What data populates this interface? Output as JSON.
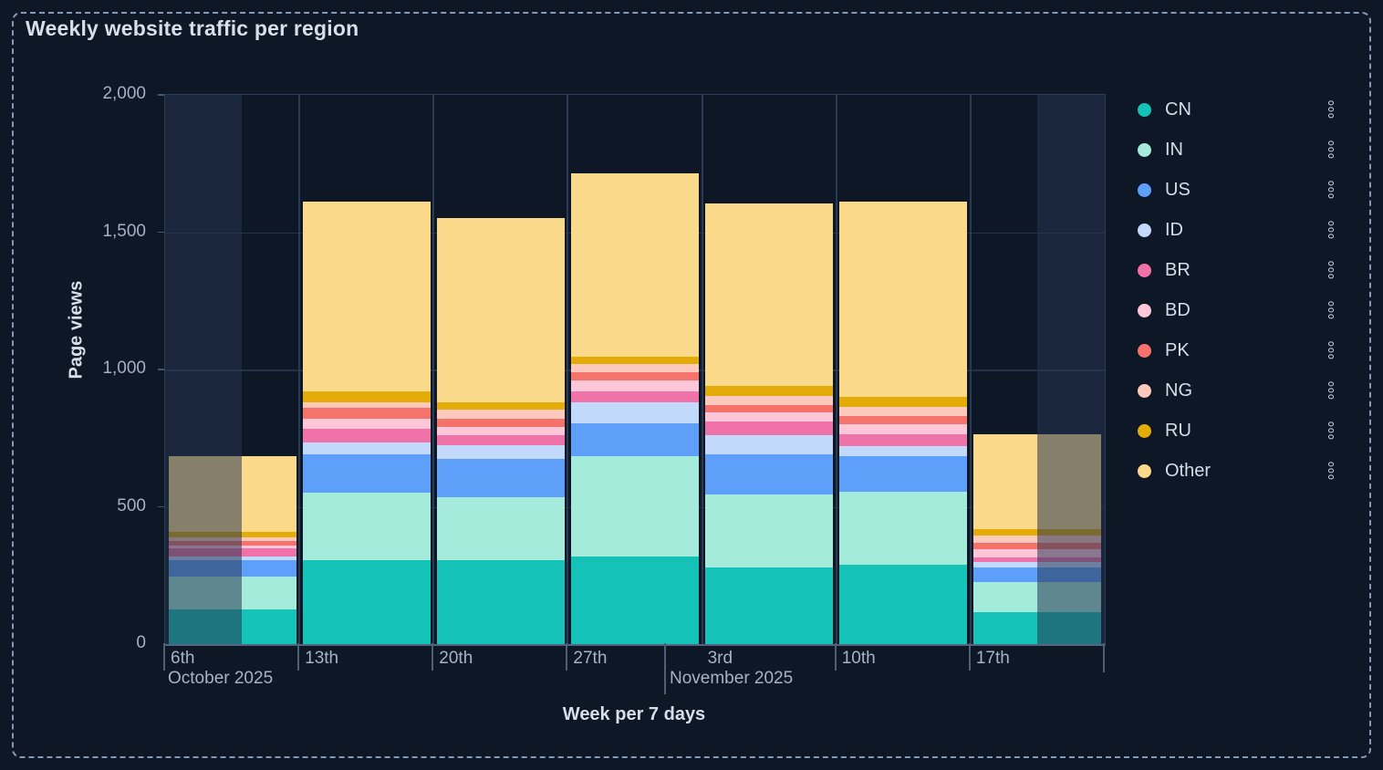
{
  "title": "Weekly website traffic per region",
  "y_axis": {
    "title": "Page views",
    "tick_labels": [
      "0",
      "500",
      "1,000",
      "1,500",
      "2,000"
    ],
    "tick_values": [
      0,
      500,
      1000,
      1500,
      2000
    ]
  },
  "x_axis": {
    "title": "Week per 7 days",
    "day_labels": [
      "6th",
      "13th",
      "20th",
      "27th",
      "3rd",
      "10th",
      "17th"
    ],
    "month_labels": [
      "October 2025",
      "November 2025"
    ]
  },
  "legend": {
    "menu_icon": "kebab-vertical-dots-icon",
    "items": [
      {
        "label": "CN",
        "color": "#15c2b8"
      },
      {
        "label": "IN",
        "color": "#a5ebdc"
      },
      {
        "label": "US",
        "color": "#5e9ffa"
      },
      {
        "label": "ID",
        "color": "#c2d9fc"
      },
      {
        "label": "BR",
        "color": "#ef72a8"
      },
      {
        "label": "BD",
        "color": "#fec7d9"
      },
      {
        "label": "PK",
        "color": "#f6736c"
      },
      {
        "label": "NG",
        "color": "#fdc9bd"
      },
      {
        "label": "RU",
        "color": "#e3ac08"
      },
      {
        "label": "Other",
        "color": "#fbd98b"
      }
    ]
  },
  "chart_data": {
    "type": "bar",
    "stacked": true,
    "title": "Weekly website traffic per region",
    "xlabel": "Week per 7 days",
    "ylabel": "Page views",
    "ylim": [
      0,
      2000
    ],
    "grid": true,
    "legend_position": "right",
    "categories": [
      "Oct 6 2025",
      "Oct 13 2025",
      "Oct 20 2025",
      "Oct 27 2025",
      "Nov 3 2025",
      "Nov 10 2025",
      "Nov 17 2025"
    ],
    "series": [
      {
        "name": "CN",
        "color": "#15c2b8",
        "values": [
          125,
          305,
          305,
          320,
          280,
          290,
          115
        ]
      },
      {
        "name": "IN",
        "color": "#a5ebdc",
        "values": [
          120,
          245,
          230,
          365,
          265,
          265,
          110
        ]
      },
      {
        "name": "US",
        "color": "#5e9ffa",
        "values": [
          60,
          140,
          140,
          120,
          145,
          130,
          55
        ]
      },
      {
        "name": "ID",
        "color": "#c2d9fc",
        "values": [
          15,
          45,
          50,
          75,
          70,
          35,
          20
        ]
      },
      {
        "name": "BR",
        "color": "#ef72a8",
        "values": [
          30,
          50,
          35,
          40,
          50,
          45,
          15
        ]
      },
      {
        "name": "BD",
        "color": "#fec7d9",
        "values": [
          10,
          35,
          30,
          40,
          35,
          35,
          30
        ]
      },
      {
        "name": "PK",
        "color": "#f6736c",
        "values": [
          15,
          40,
          30,
          30,
          25,
          30,
          25
        ]
      },
      {
        "name": "NG",
        "color": "#fdc9bd",
        "values": [
          15,
          20,
          35,
          30,
          35,
          35,
          25
        ]
      },
      {
        "name": "RU",
        "color": "#e3ac08",
        "values": [
          20,
          40,
          25,
          25,
          35,
          35,
          25
        ]
      },
      {
        "name": "Other",
        "color": "#fbd98b",
        "values": [
          275,
          690,
          670,
          670,
          665,
          710,
          345
        ]
      }
    ],
    "totals": [
      685,
      1610,
      1550,
      1715,
      1605,
      1610,
      765
    ],
    "dimmed_ranges_frac": [
      [
        0.0,
        0.082
      ],
      [
        0.928,
        1.0
      ]
    ]
  }
}
